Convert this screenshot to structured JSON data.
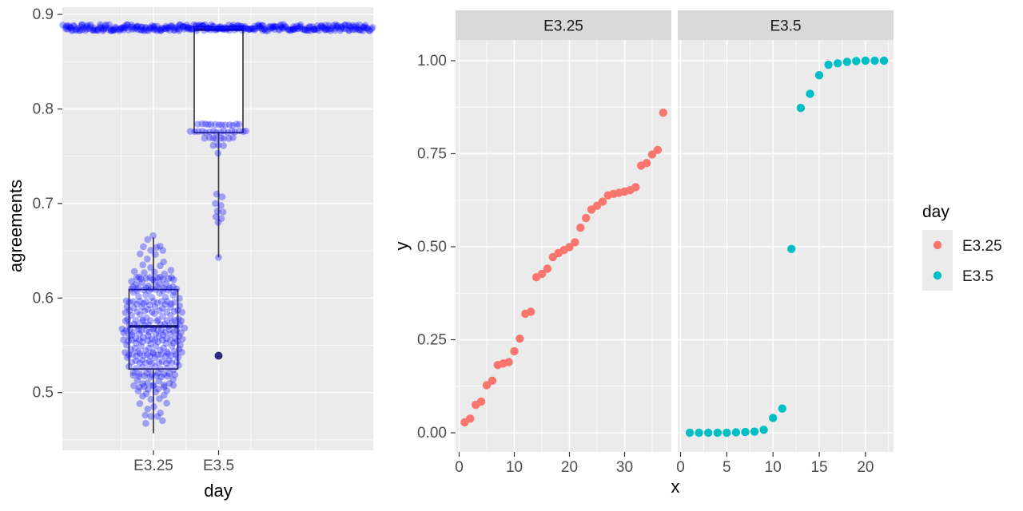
{
  "theme": {
    "background": "#FFFFFF",
    "panel_bg": "#EBEBEB",
    "strip_bg": "#D9D9D9",
    "grid_color": "#FFFFFF",
    "axis_text_color": "#4D4D4D",
    "strip_text_color": "#1A1A1A",
    "tick_color": "#333333",
    "box_stroke": "#3A3A3A"
  },
  "chart_data": [
    {
      "type": "boxplot-jitter",
      "xlabel": "day",
      "ylabel": "agreements",
      "categories": [
        "E3.25",
        "E3.5"
      ],
      "y_ticks": [
        "0.5",
        "0.6",
        "0.7",
        "0.8",
        "0.9"
      ],
      "y_tick_values": [
        0.5,
        0.6,
        0.7,
        0.8,
        0.9
      ],
      "ylim": [
        0.433,
        0.909
      ],
      "point_color": "#0000FF",
      "point_alpha": 0.32,
      "boxes": [
        {
          "category": "E3.25",
          "q1": 0.525,
          "median": 0.57,
          "q3": 0.609,
          "whisker_low": 0.457,
          "whisker_high": 0.664
        },
        {
          "category": "E3.5",
          "q1": 0.775,
          "median": 0.884,
          "q3": 0.887,
          "whisker_low": 0.643,
          "whisker_high": 0.887
        }
      ],
      "top_band": {
        "value": 0.886,
        "n": 330,
        "note": "dense band of overlapping points across full panel width"
      },
      "swarm": {
        "category": "E3.25",
        "n": 280,
        "mean": 0.567,
        "sd": 0.044,
        "min": 0.457,
        "max": 0.666
      },
      "e35_rows": [
        {
          "y": 0.7835,
          "n": 13,
          "spread": 52
        },
        {
          "y": 0.776,
          "n": 16,
          "spread": 70
        },
        {
          "y": 0.769,
          "n": 8,
          "spread": 34
        },
        {
          "y": 0.7615,
          "n": 3,
          "spread": 14
        },
        {
          "y": 0.754,
          "n": 1,
          "spread": 0
        }
      ],
      "e35_mid_points": [
        {
          "dx": -2.5,
          "y": 0.71
        },
        {
          "dx": 4.5,
          "y": 0.707
        },
        {
          "dx": -4.0,
          "y": 0.7
        },
        {
          "dx": 3.0,
          "y": 0.698
        },
        {
          "dx": -1.5,
          "y": 0.692
        },
        {
          "dx": 5.5,
          "y": 0.691
        },
        {
          "dx": -3.5,
          "y": 0.686
        },
        {
          "dx": 3.5,
          "y": 0.684
        },
        {
          "dx": -0.5,
          "y": 0.68
        }
      ],
      "e35_single_point": {
        "dx": 0,
        "y": 0.643
      },
      "dark_outlier": {
        "category": "E3.5",
        "y": 0.539,
        "color": "#22227A"
      }
    },
    {
      "type": "scatter",
      "facet_by": "day",
      "xlabel": "x",
      "ylabel": "y",
      "y_ticks": [
        "0.00",
        "0.25",
        "0.50",
        "0.75",
        "1.00"
      ],
      "y_tick_values": [
        0,
        0.25,
        0.5,
        0.75,
        1
      ],
      "facets": [
        {
          "label": "E3.25",
          "color": "#F8766D",
          "x_ticks": [
            0,
            10,
            20,
            30
          ],
          "x_minor": [
            5,
            15,
            25,
            35
          ],
          "x": [
            1,
            2,
            3,
            4,
            5,
            6,
            7,
            8,
            9,
            10,
            11,
            12,
            13,
            14,
            15,
            16,
            17,
            18,
            19,
            20,
            21,
            22,
            23,
            24,
            25,
            26,
            27,
            28,
            29,
            30,
            31,
            32,
            33,
            34,
            35,
            36,
            37
          ],
          "y": [
            0.028,
            0.038,
            0.075,
            0.084,
            0.128,
            0.14,
            0.182,
            0.186,
            0.19,
            0.219,
            0.253,
            0.32,
            0.325,
            0.418,
            0.427,
            0.441,
            0.472,
            0.483,
            0.491,
            0.499,
            0.512,
            0.551,
            0.577,
            0.6,
            0.61,
            0.621,
            0.638,
            0.642,
            0.645,
            0.648,
            0.652,
            0.66,
            0.718,
            0.725,
            0.748,
            0.76,
            0.86
          ]
        },
        {
          "label": "E3.5",
          "color": "#00BFC4",
          "x_ticks": [
            0,
            5,
            10,
            15,
            20
          ],
          "x_minor": [
            2.5,
            7.5,
            12.5,
            17.5,
            22.5
          ],
          "x": [
            1,
            2,
            3,
            4,
            5,
            6,
            7,
            8,
            9,
            10,
            11,
            12,
            13,
            14,
            15,
            16,
            17,
            18,
            19,
            20,
            21,
            22
          ],
          "y": [
            0.0,
            0.0,
            0.0,
            0.0,
            0.0,
            0.001,
            0.002,
            0.003,
            0.008,
            0.04,
            0.065,
            0.494,
            0.873,
            0.911,
            0.961,
            0.989,
            0.993,
            0.997,
            0.999,
            1.0,
            1.0,
            1.0
          ]
        }
      ],
      "legend": {
        "title": "day",
        "items": [
          {
            "label": "E3.25",
            "color": "#F8766D"
          },
          {
            "label": "E3.5",
            "color": "#00BFC4"
          }
        ]
      }
    }
  ]
}
